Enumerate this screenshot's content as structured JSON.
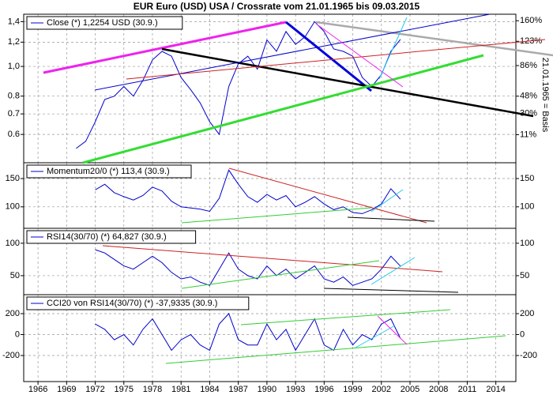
{
  "chart_data": [
    {
      "type": "line",
      "title": "EUR Euro (USD) USA / Crossrate vom 21.01.1965 bis 09.03.2015",
      "y2_label": "21.01.1965 = Basis",
      "x": [
        1970,
        1971,
        1972,
        1973,
        1974,
        1975,
        1976,
        1977,
        1978,
        1979,
        1980,
        1981,
        1982,
        1983,
        1984,
        1985,
        1986,
        1987,
        1988,
        1989,
        1990,
        1991,
        1992,
        1993,
        1994,
        1995,
        1996,
        1997,
        1998,
        1999,
        2000,
        2001,
        2002,
        2003,
        2004
      ],
      "series": [
        {
          "name": "Close (*) 1,2254 USD (30.9.)",
          "color": "#0000cc",
          "values": [
            0.54,
            0.57,
            0.66,
            0.78,
            0.8,
            0.86,
            0.8,
            0.9,
            1.05,
            1.12,
            1.08,
            0.92,
            0.84,
            0.76,
            0.66,
            0.6,
            0.86,
            1.02,
            1.08,
            0.98,
            1.22,
            1.12,
            1.3,
            1.18,
            1.25,
            1.4,
            1.3,
            1.14,
            1.12,
            1.08,
            0.92,
            0.86,
            0.94,
            1.12,
            1.2254
          ]
        }
      ],
      "xlim": [
        1964.5,
        2016.1
      ],
      "ylim": [
        0.485,
        1.48
      ],
      "ylog": true,
      "yticks": [
        0.6,
        0.7,
        0.8,
        {
          "value": 1.0,
          "label": "1,0"
        },
        {
          "value": 1.2,
          "label": "1,2"
        },
        {
          "value": 1.4,
          "label": "1,4"
        }
      ],
      "y2lim": [
        -10,
        173
      ],
      "y2log": true,
      "y2ticks": [
        {
          "value": 11,
          "label": "11%"
        },
        {
          "value": 30,
          "label": "30%"
        },
        {
          "value": 48,
          "label": "48%"
        },
        {
          "value": 86,
          "label": "86%"
        },
        {
          "value": 123,
          "label": "123%"
        },
        {
          "value": 160,
          "label": "160%"
        }
      ],
      "grid": true
    },
    {
      "type": "line",
      "x": [
        1970,
        1971,
        1972,
        1973,
        1974,
        1975,
        1976,
        1977,
        1978,
        1979,
        1980,
        1981,
        1982,
        1983,
        1984,
        1985,
        1986,
        1987,
        1988,
        1989,
        1990,
        1991,
        1992,
        1993,
        1994,
        1995,
        1996,
        1997,
        1998,
        1999,
        2000,
        2001,
        2002,
        2003,
        2004
      ],
      "series": [
        {
          "name": "Momentum20/0 (*) 113,4 (30.9.)",
          "color": "#0000cc",
          "values": [
            null,
            null,
            130,
            140,
            125,
            118,
            112,
            120,
            135,
            128,
            110,
            100,
            98,
            96,
            92,
            115,
            165,
            140,
            118,
            108,
            122,
            112,
            120,
            100,
            108,
            118,
            105,
            95,
            100,
            90,
            88,
            95,
            105,
            132,
            113.4
          ]
        }
      ],
      "xlim": [
        1964.5,
        2016.1
      ],
      "ylim": [
        62,
        178
      ],
      "yticks": [
        100,
        150
      ],
      "grid": true
    },
    {
      "type": "line",
      "x": [
        1970,
        1971,
        1972,
        1973,
        1974,
        1975,
        1976,
        1977,
        1978,
        1979,
        1980,
        1981,
        1982,
        1983,
        1984,
        1985,
        1986,
        1987,
        1988,
        1989,
        1990,
        1991,
        1992,
        1993,
        1994,
        1995,
        1996,
        1997,
        1998,
        1999,
        2000,
        2001,
        2002,
        2003,
        2004
      ],
      "series": [
        {
          "name": "RSI14(30/70) (*) 64,827 (30.9.)",
          "color": "#0000cc",
          "values": [
            null,
            null,
            90,
            85,
            75,
            65,
            60,
            70,
            80,
            70,
            55,
            45,
            48,
            40,
            35,
            60,
            85,
            60,
            50,
            45,
            65,
            50,
            60,
            45,
            55,
            65,
            45,
            40,
            48,
            35,
            40,
            45,
            60,
            80,
            64.827
          ]
        }
      ],
      "xlim": [
        1964.5,
        2016.1
      ],
      "ylim": [
        20.7,
        123
      ],
      "yticks": [
        50,
        100
      ],
      "grid": true
    },
    {
      "type": "line",
      "x": [
        1970,
        1971,
        1972,
        1973,
        1974,
        1975,
        1976,
        1977,
        1978,
        1979,
        1980,
        1981,
        1982,
        1983,
        1984,
        1985,
        1986,
        1987,
        1988,
        1989,
        1990,
        1991,
        1992,
        1993,
        1994,
        1995,
        1996,
        1997,
        1998,
        1999,
        2000,
        2001,
        2002,
        2003,
        2004
      ],
      "series": [
        {
          "name": "CCI20 von RSI14(30/70) (*) -37,9335 (30.9.)",
          "color": "#0000cc",
          "values": [
            null,
            null,
            100,
            50,
            -50,
            0,
            -100,
            50,
            150,
            0,
            -150,
            -50,
            0,
            -100,
            -150,
            100,
            200,
            -50,
            -100,
            -100,
            100,
            -50,
            50,
            -150,
            0,
            150,
            -100,
            -150,
            50,
            -100,
            0,
            -50,
            100,
            150,
            -37.9335
          ]
        }
      ],
      "xlim": [
        1964.5,
        2016.1
      ],
      "ylim": [
        -449,
        381
      ],
      "yticks": [
        -200,
        0,
        200
      ],
      "xticks": [
        1966,
        1969,
        1972,
        1975,
        1978,
        1981,
        1984,
        1987,
        1990,
        1993,
        1996,
        1999,
        2002,
        2005,
        2008,
        2011,
        2014
      ],
      "grid": true
    }
  ]
}
